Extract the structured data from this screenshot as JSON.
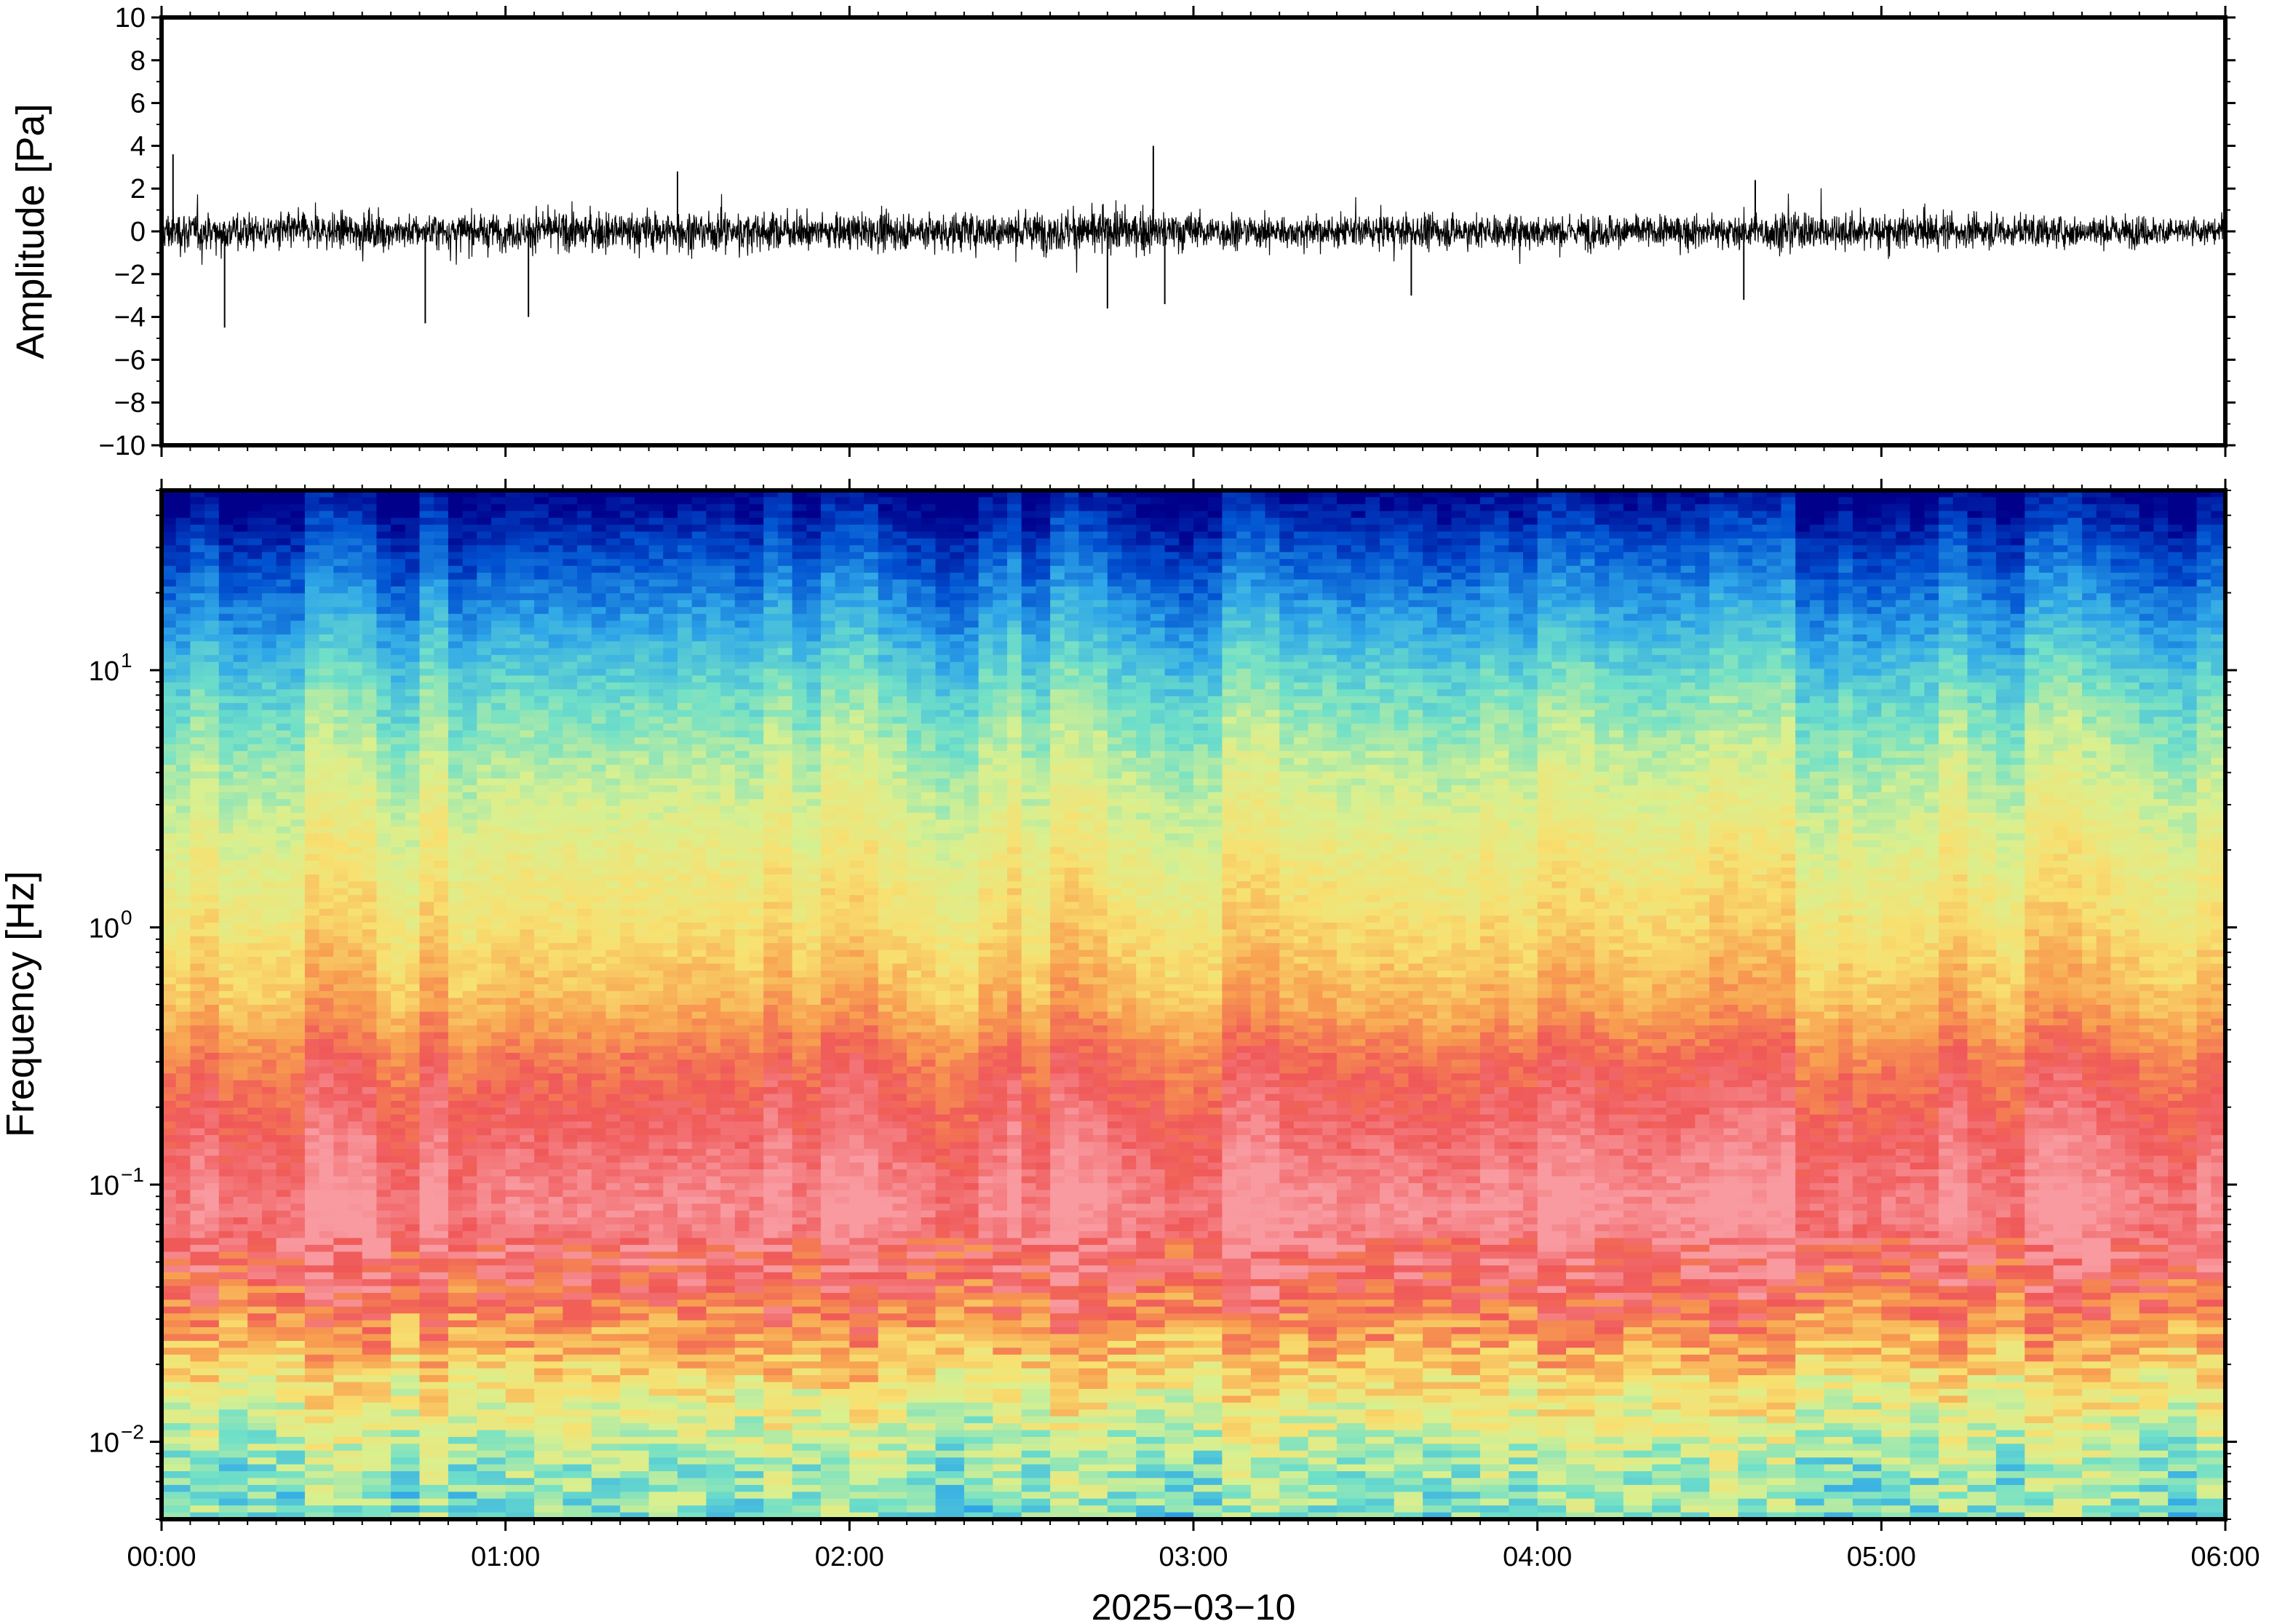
{
  "chart_data": [
    {
      "type": "line",
      "ylabel": "Amplitude [Pa]",
      "ylim": [
        -10,
        10
      ],
      "yticks": [
        {
          "value": 10,
          "label": "10"
        },
        {
          "value": 8,
          "label": "8"
        },
        {
          "value": 6,
          "label": "6"
        },
        {
          "value": 4,
          "label": "4"
        },
        {
          "value": 2,
          "label": "2"
        },
        {
          "value": 0,
          "label": "0"
        },
        {
          "value": -2,
          "label": "−2"
        },
        {
          "value": -4,
          "label": "−4"
        },
        {
          "value": -6,
          "label": "−6"
        },
        {
          "value": -8,
          "label": "−8"
        },
        {
          "value": -10,
          "label": "−10"
        }
      ],
      "xlim": [
        "2025-03-10T00:00",
        "2025-03-10T06:00"
      ],
      "envelope": {
        "x": [
          "00:00",
          "00:15",
          "00:30",
          "00:45",
          "01:00",
          "01:15",
          "01:30",
          "01:45",
          "02:00",
          "02:15",
          "02:30",
          "02:45",
          "03:00",
          "03:15",
          "03:30",
          "03:45",
          "04:00",
          "04:15",
          "04:30",
          "04:45",
          "05:00",
          "05:15",
          "05:30",
          "05:45",
          "06:00"
        ],
        "typical_amplitude_pa": [
          1.5,
          1.3,
          1.3,
          1.2,
          1.3,
          1.4,
          1.5,
          1.3,
          1.2,
          1.4,
          1.4,
          1.5,
          1.4,
          1.1,
          1.1,
          1.2,
          1.2,
          1.2,
          1.1,
          1.4,
          1.3,
          1.2,
          1.1,
          1.1,
          1.0
        ]
      },
      "spikes": [
        {
          "time": "00:02",
          "value": 3.6
        },
        {
          "time": "00:11",
          "value": -4.5
        },
        {
          "time": "00:46",
          "value": -4.3
        },
        {
          "time": "01:04",
          "value": -4.0
        },
        {
          "time": "01:30",
          "value": 2.8
        },
        {
          "time": "02:45",
          "value": -3.6
        },
        {
          "time": "02:53",
          "value": 4.0
        },
        {
          "time": "02:55",
          "value": -3.4
        },
        {
          "time": "03:38",
          "value": -3.0
        },
        {
          "time": "04:36",
          "value": -3.2
        },
        {
          "time": "04:38",
          "value": 2.4
        }
      ]
    },
    {
      "type": "heatmap",
      "ylabel": "Frequency [Hz]",
      "yscale": "log",
      "ylim": [
        0.005,
        50
      ],
      "yticks": [
        {
          "value": 10,
          "base": "10",
          "exp": "1"
        },
        {
          "value": 1,
          "base": "10",
          "exp": "0"
        },
        {
          "value": 0.1,
          "base": "10",
          "exp": "−1"
        },
        {
          "value": 0.01,
          "base": "10",
          "exp": "−2"
        }
      ],
      "xlabel": "2025−03−10",
      "xticks": [
        "00:00",
        "01:00",
        "02:00",
        "03:00",
        "04:00",
        "05:00",
        "06:00"
      ],
      "colormap": [
        "#00008b",
        "#0050d0",
        "#30a8e8",
        "#70e0c8",
        "#d8f090",
        "#f8e070",
        "#f8a050",
        "#f05858",
        "#f89aa0"
      ],
      "color_level_by_frequency": [
        {
          "hz": 50,
          "level": 0.0
        },
        {
          "hz": 30,
          "level": 0.12
        },
        {
          "hz": 15,
          "level": 0.26
        },
        {
          "hz": 8,
          "level": 0.38
        },
        {
          "hz": 4,
          "level": 0.48
        },
        {
          "hz": 2,
          "level": 0.56
        },
        {
          "hz": 1,
          "level": 0.63
        },
        {
          "hz": 0.5,
          "level": 0.72
        },
        {
          "hz": 0.3,
          "level": 0.84
        },
        {
          "hz": 0.15,
          "level": 0.92
        },
        {
          "hz": 0.08,
          "level": 0.98
        },
        {
          "hz": 0.04,
          "level": 0.88
        },
        {
          "hz": 0.025,
          "level": 0.74
        },
        {
          "hz": 0.015,
          "level": 0.58
        },
        {
          "hz": 0.008,
          "level": 0.44
        },
        {
          "hz": 0.005,
          "level": 0.4
        }
      ]
    }
  ]
}
